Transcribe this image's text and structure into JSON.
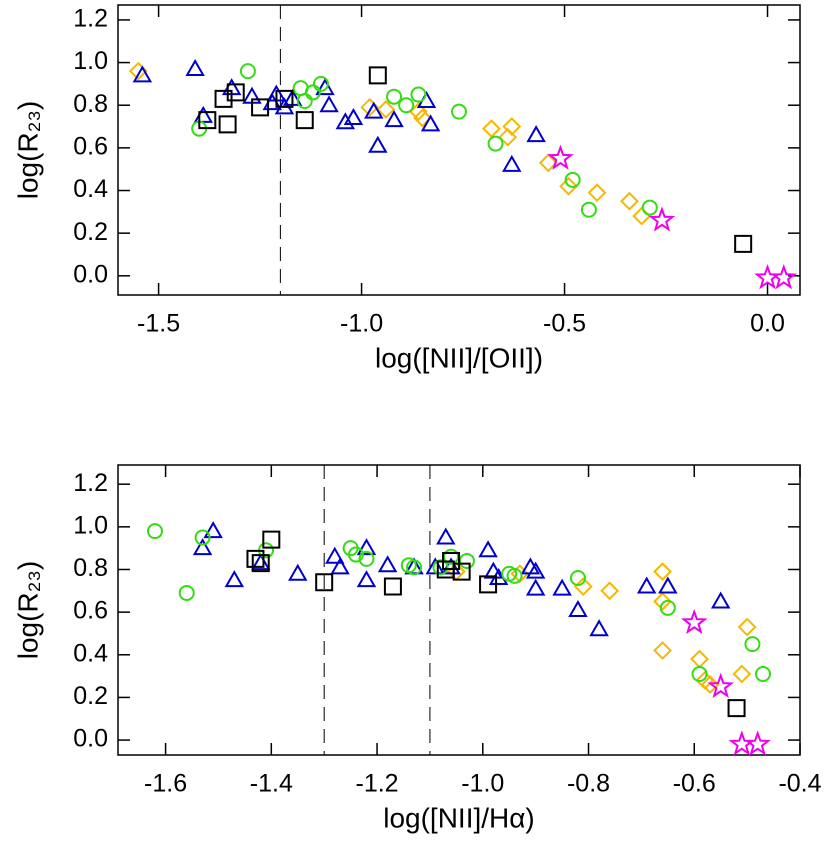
{
  "chart_data": [
    {
      "type": "scatter",
      "xlabel": "log([NII]/[OII])",
      "ylabel": "log(R₂₃)",
      "xlim": [
        -1.6,
        0.08
      ],
      "ylim": [
        -0.09,
        1.27
      ],
      "xticks": [
        -1.5,
        {
          "value": -1,
          "label": "-1.0"
        },
        -0.5,
        {
          "value": 0,
          "label": "0.0"
        }
      ],
      "yticks": [
        {
          "value": 0,
          "label": "0.0"
        },
        0.2,
        0.4,
        0.6,
        0.8,
        {
          "value": 1,
          "label": "1.0"
        },
        1.2
      ],
      "vlines": [
        -1.2
      ],
      "series": [
        {
          "color": "#f5b800",
          "marker": "diamond",
          "x": [
            -1.55,
            -0.98,
            -0.94,
            -0.86,
            -0.85,
            -0.68,
            -0.64,
            -0.63,
            -0.54,
            -0.49,
            -0.42,
            -0.34,
            -0.31
          ],
          "values": [
            0.96,
            0.79,
            0.78,
            0.77,
            0.74,
            0.69,
            0.65,
            0.7,
            0.53,
            0.42,
            0.39,
            0.35,
            0.28
          ]
        },
        {
          "color": "#0000cc",
          "marker": "triangle",
          "x": [
            -1.54,
            -1.41,
            -1.39,
            -1.32,
            -1.27,
            -1.22,
            -1.21,
            -1.19,
            -1.17,
            -1.09,
            -1.08,
            -1.04,
            -1.02,
            -0.97,
            -0.96,
            -0.92,
            -0.84,
            -0.83,
            -0.63,
            -0.57
          ],
          "values": [
            0.94,
            0.97,
            0.75,
            0.88,
            0.84,
            0.81,
            0.85,
            0.79,
            0.83,
            0.88,
            0.8,
            0.72,
            0.74,
            0.77,
            0.61,
            0.73,
            0.82,
            0.71,
            0.52,
            0.66
          ]
        },
        {
          "color": "#33dd11",
          "marker": "circle",
          "x": [
            -1.4,
            -1.28,
            -1.15,
            -1.14,
            -1.12,
            -1.1,
            -0.92,
            -0.89,
            -0.86,
            -0.76,
            -0.67,
            -0.48,
            -0.44,
            -0.29
          ],
          "values": [
            0.69,
            0.96,
            0.88,
            0.82,
            0.86,
            0.9,
            0.84,
            0.8,
            0.85,
            0.77,
            0.62,
            0.45,
            0.31,
            0.32
          ]
        },
        {
          "color": "#000000",
          "marker": "square",
          "x": [
            -1.38,
            -1.33,
            -1.34,
            -1.31,
            -1.25,
            -1.19,
            -1.14,
            -0.96,
            -0.06
          ],
          "values": [
            0.73,
            0.71,
            0.83,
            0.86,
            0.79,
            0.83,
            0.73,
            0.94,
            0.15
          ]
        },
        {
          "color": "#ee00ee",
          "marker": "star",
          "x": [
            -0.51,
            -0.26,
            0.0,
            0.04
          ],
          "values": [
            0.55,
            0.26,
            -0.01,
            -0.01
          ]
        }
      ]
    },
    {
      "type": "scatter",
      "xlabel": "log([NII]/Hα)",
      "ylabel": "log(R₂₃)",
      "xlim": [
        -1.69,
        -0.4
      ],
      "ylim": [
        -0.07,
        1.29
      ],
      "xticks": [
        -1.6,
        -1.4,
        -1.2,
        {
          "value": -1,
          "label": "-1.0"
        },
        -0.8,
        -0.6,
        -0.4
      ],
      "yticks": [
        {
          "value": 0,
          "label": "0.0"
        },
        0.2,
        0.4,
        0.6,
        0.8,
        {
          "value": 1,
          "label": "1.0"
        },
        1.2
      ],
      "vlines": [
        -1.3,
        -1.1
      ],
      "series": [
        {
          "color": "#f5b800",
          "marker": "diamond",
          "x": [
            -1.05,
            -0.93,
            -0.81,
            -0.76,
            -0.66,
            -0.66,
            -0.66,
            -0.59,
            -0.58,
            -0.57,
            -0.51,
            -0.5
          ],
          "values": [
            0.79,
            0.78,
            0.72,
            0.7,
            0.79,
            0.65,
            0.42,
            0.38,
            0.28,
            0.26,
            0.31,
            0.53
          ]
        },
        {
          "color": "#0000cc",
          "marker": "triangle",
          "x": [
            -1.53,
            -1.51,
            -1.47,
            -1.42,
            -1.35,
            -1.28,
            -1.27,
            -1.22,
            -1.22,
            -1.18,
            -1.13,
            -1.09,
            -1.07,
            -1.06,
            -0.99,
            -0.98,
            -0.97,
            -0.91,
            -0.9,
            -0.9,
            -0.85,
            -0.82,
            -0.78,
            -0.69,
            -0.65,
            -0.55
          ],
          "values": [
            0.9,
            0.98,
            0.75,
            0.83,
            0.78,
            0.86,
            0.81,
            0.9,
            0.75,
            0.82,
            0.81,
            0.81,
            0.95,
            0.81,
            0.89,
            0.79,
            0.76,
            0.81,
            0.79,
            0.71,
            0.71,
            0.61,
            0.52,
            0.72,
            0.72,
            0.65
          ]
        },
        {
          "color": "#33dd11",
          "marker": "circle",
          "x": [
            -1.62,
            -1.56,
            -1.53,
            -1.41,
            -1.25,
            -1.24,
            -1.22,
            -1.14,
            -1.13,
            -1.08,
            -1.06,
            -1.03,
            -0.95,
            -0.94,
            -0.82,
            -0.59,
            -0.65,
            -0.49,
            -0.47
          ],
          "values": [
            0.98,
            0.69,
            0.95,
            0.89,
            0.9,
            0.87,
            0.85,
            0.82,
            0.81,
            0.81,
            0.86,
            0.84,
            0.78,
            0.77,
            0.76,
            0.31,
            0.62,
            0.45,
            0.31
          ]
        },
        {
          "color": "#000000",
          "marker": "square",
          "x": [
            -1.43,
            -1.42,
            -1.4,
            -1.3,
            -1.17,
            -1.07,
            -1.06,
            -1.04,
            -0.99,
            -0.52
          ],
          "values": [
            0.85,
            0.83,
            0.94,
            0.74,
            0.72,
            0.8,
            0.84,
            0.79,
            0.73,
            0.15
          ]
        },
        {
          "color": "#ee00ee",
          "marker": "star",
          "x": [
            -0.6,
            -0.55,
            -0.51,
            -0.48
          ],
          "values": [
            0.55,
            0.25,
            -0.02,
            -0.02
          ]
        }
      ]
    }
  ]
}
